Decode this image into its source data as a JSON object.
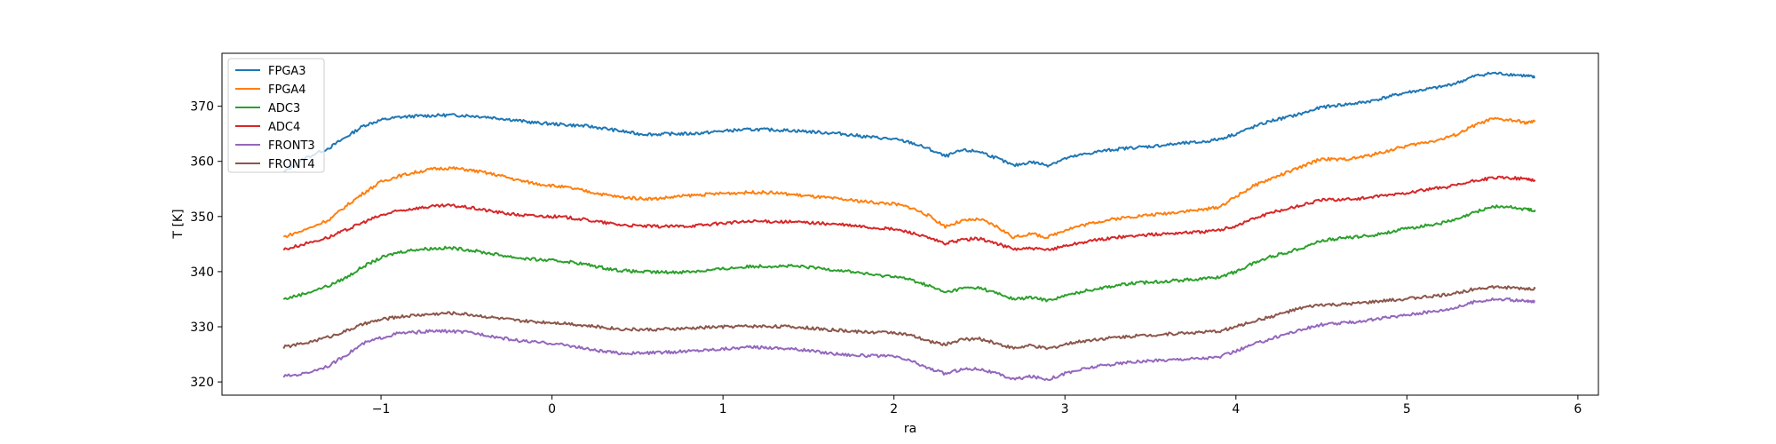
{
  "chart_data": {
    "type": "line",
    "title": "",
    "xlabel": "ra",
    "ylabel": "T [K]",
    "xlim": [
      -1.93,
      6.12
    ],
    "ylim": [
      317.6,
      379.6
    ],
    "xticks": [
      -1,
      0,
      1,
      2,
      3,
      4,
      5,
      6
    ],
    "xtick_labels": [
      "−1",
      "0",
      "1",
      "2",
      "3",
      "4",
      "5",
      "6"
    ],
    "yticks": [
      320,
      330,
      340,
      350,
      360,
      370
    ],
    "ytick_labels": [
      "320",
      "330",
      "340",
      "350",
      "360",
      "370"
    ],
    "grid": false,
    "legend_position": "top-left",
    "x": [
      -1.57,
      -1.45,
      -1.3,
      -1.2,
      -1.1,
      -1.0,
      -0.9,
      -0.8,
      -0.7,
      -0.6,
      -0.5,
      -0.4,
      -0.3,
      -0.2,
      -0.1,
      0.0,
      0.1,
      0.2,
      0.3,
      0.4,
      0.5,
      0.6,
      0.7,
      0.8,
      0.9,
      1.0,
      1.1,
      1.2,
      1.3,
      1.4,
      1.5,
      1.6,
      1.7,
      1.8,
      1.9,
      2.0,
      2.1,
      2.2,
      2.3,
      2.4,
      2.5,
      2.6,
      2.7,
      2.8,
      2.9,
      3.0,
      3.1,
      3.2,
      3.3,
      3.4,
      3.5,
      3.6,
      3.7,
      3.8,
      3.9,
      4.0,
      4.1,
      4.2,
      4.3,
      4.4,
      4.5,
      4.6,
      4.7,
      4.8,
      4.9,
      5.0,
      5.1,
      5.2,
      5.3,
      5.4,
      5.5,
      5.6,
      5.7,
      5.75
    ],
    "series": [
      {
        "name": "FPGA3",
        "color": "#1f77b4",
        "values": [
          358.0,
          360.5,
          362.5,
          364.5,
          366.5,
          367.5,
          368.0,
          368.2,
          368.3,
          368.4,
          368.3,
          368.1,
          367.8,
          367.4,
          367.0,
          366.8,
          366.6,
          366.4,
          366.0,
          365.5,
          365.0,
          364.9,
          365.0,
          365.0,
          365.2,
          365.5,
          365.7,
          365.8,
          365.7,
          365.6,
          365.4,
          365.2,
          365.0,
          364.6,
          364.3,
          364.0,
          363.4,
          362.3,
          360.9,
          362.0,
          361.8,
          360.6,
          359.2,
          359.9,
          359.3,
          360.5,
          361.2,
          361.8,
          362.2,
          362.5,
          362.7,
          363.0,
          363.3,
          363.5,
          364.0,
          365.0,
          366.2,
          367.3,
          368.0,
          368.8,
          369.8,
          370.2,
          370.5,
          371.0,
          371.8,
          372.5,
          373.0,
          373.5,
          374.3,
          375.5,
          376.0,
          375.8,
          375.5,
          375.2
        ]
      },
      {
        "name": "FPGA4",
        "color": "#ff7f0e",
        "values": [
          346.3,
          347.5,
          349.5,
          352.0,
          354.3,
          356.3,
          357.3,
          358.0,
          358.6,
          358.8,
          358.5,
          358.0,
          357.4,
          356.6,
          356.0,
          355.6,
          355.2,
          354.6,
          354.0,
          353.5,
          353.3,
          353.2,
          353.5,
          353.8,
          354.0,
          354.2,
          354.3,
          354.4,
          354.3,
          354.0,
          353.7,
          353.4,
          353.1,
          352.8,
          352.5,
          352.3,
          351.6,
          350.2,
          348.2,
          349.2,
          349.5,
          348.2,
          346.2,
          346.9,
          346.2,
          347.6,
          348.4,
          349.1,
          349.6,
          350.0,
          350.3,
          350.6,
          351.0,
          351.2,
          351.7,
          353.6,
          355.5,
          356.8,
          358.0,
          359.2,
          360.5,
          360.3,
          360.6,
          361.2,
          362.0,
          362.8,
          363.4,
          364.0,
          365.0,
          366.6,
          367.7,
          367.5,
          367.0,
          367.2
        ]
      },
      {
        "name": "ADC3",
        "color": "#2ca02c",
        "values": [
          335.0,
          336.0,
          337.5,
          339.0,
          341.0,
          342.5,
          343.5,
          344.0,
          344.2,
          344.3,
          344.0,
          343.5,
          343.0,
          342.5,
          342.2,
          342.0,
          341.8,
          341.3,
          340.7,
          340.2,
          340.0,
          339.9,
          339.9,
          340.0,
          340.2,
          340.5,
          340.8,
          341.0,
          341.0,
          341.0,
          340.8,
          340.5,
          340.2,
          339.8,
          339.3,
          339.2,
          338.5,
          337.5,
          336.2,
          337.0,
          337.1,
          336.1,
          335.0,
          335.3,
          334.8,
          335.6,
          336.4,
          337.0,
          337.5,
          337.9,
          338.1,
          338.3,
          338.5,
          338.7,
          339.0,
          340.0,
          341.5,
          342.7,
          343.5,
          344.5,
          345.6,
          346.0,
          346.3,
          346.6,
          347.2,
          347.8,
          348.3,
          348.8,
          349.5,
          350.8,
          351.8,
          351.7,
          351.3,
          351.2
        ]
      },
      {
        "name": "ADC4",
        "color": "#d62728",
        "values": [
          344.0,
          345.0,
          346.3,
          347.6,
          349.0,
          350.2,
          351.0,
          351.5,
          351.8,
          352.0,
          351.7,
          351.2,
          350.7,
          350.3,
          350.1,
          350.0,
          349.8,
          349.4,
          348.9,
          348.5,
          348.3,
          348.2,
          348.2,
          348.3,
          348.5,
          348.8,
          349.0,
          349.1,
          349.1,
          349.0,
          348.9,
          348.7,
          348.5,
          348.2,
          347.9,
          347.7,
          347.1,
          346.1,
          345.1,
          345.8,
          346.0,
          345.1,
          344.1,
          344.2,
          343.9,
          344.7,
          345.3,
          345.8,
          346.2,
          346.5,
          346.7,
          346.9,
          347.1,
          347.2,
          347.5,
          348.3,
          349.6,
          350.6,
          351.4,
          352.2,
          353.0,
          353.1,
          353.2,
          353.5,
          353.9,
          354.3,
          354.8,
          355.2,
          355.7,
          356.5,
          357.0,
          357.0,
          356.8,
          356.6
        ]
      },
      {
        "name": "FRONT3",
        "color": "#9467bd",
        "values": [
          321.0,
          321.5,
          323.0,
          325.0,
          327.0,
          328.0,
          328.8,
          329.0,
          329.2,
          329.2,
          329.0,
          328.6,
          328.0,
          327.5,
          327.2,
          327.0,
          326.6,
          326.0,
          325.5,
          325.2,
          325.2,
          325.3,
          325.4,
          325.6,
          325.8,
          326.0,
          326.2,
          326.3,
          326.2,
          326.0,
          325.7,
          325.3,
          325.0,
          324.8,
          324.7,
          324.6,
          323.8,
          322.5,
          321.5,
          322.3,
          322.4,
          321.5,
          320.5,
          321.0,
          320.5,
          321.5,
          322.3,
          322.9,
          323.3,
          323.6,
          323.8,
          324.0,
          324.2,
          324.3,
          324.5,
          325.6,
          326.8,
          327.8,
          328.8,
          329.6,
          330.4,
          330.6,
          330.9,
          331.3,
          331.7,
          332.2,
          332.6,
          333.0,
          333.6,
          334.6,
          335.0,
          334.9,
          334.6,
          334.6
        ]
      },
      {
        "name": "FRONT4",
        "color": "#8c564b",
        "values": [
          326.3,
          327.0,
          328.2,
          329.3,
          330.5,
          331.3,
          331.8,
          332.1,
          332.3,
          332.5,
          332.3,
          331.9,
          331.5,
          331.1,
          330.9,
          330.8,
          330.6,
          330.2,
          329.9,
          329.6,
          329.5,
          329.5,
          329.6,
          329.7,
          329.9,
          330.0,
          330.1,
          330.1,
          330.1,
          330.0,
          329.8,
          329.5,
          329.3,
          329.1,
          329.0,
          329.0,
          328.4,
          327.4,
          326.8,
          327.7,
          327.8,
          327.0,
          326.1,
          326.6,
          326.0,
          326.8,
          327.4,
          327.8,
          328.1,
          328.3,
          328.5,
          328.7,
          328.9,
          329.0,
          329.2,
          330.0,
          331.0,
          331.8,
          332.7,
          333.5,
          334.0,
          334.0,
          334.2,
          334.5,
          334.8,
          335.1,
          335.4,
          335.7,
          336.2,
          336.9,
          337.2,
          337.1,
          336.9,
          336.9
        ]
      }
    ]
  }
}
